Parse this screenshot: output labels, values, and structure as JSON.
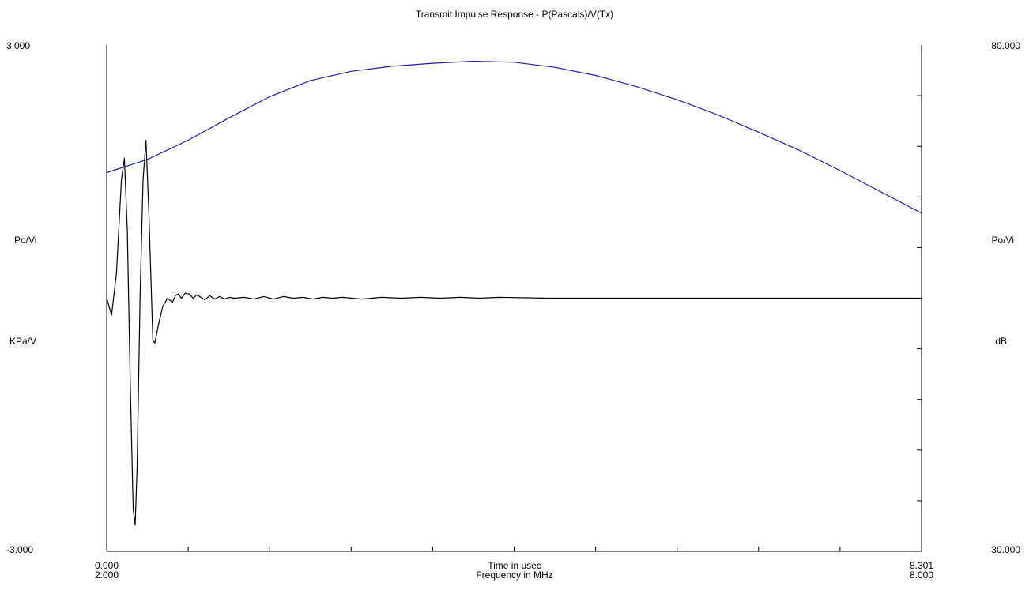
{
  "chart_data": {
    "type": "line",
    "title": "Transmit Impulse Response - P(Pascals)/V(Tx)",
    "x_axis": {
      "label_time": "Time in usec",
      "label_freq": "Frequency in MHz",
      "time_min_label": "0.000",
      "time_max_label": "8.301",
      "freq_min_label": "2.000",
      "freq_max_label": "8.000",
      "time_range": [
        0,
        8.301
      ],
      "freq_range": [
        2,
        8
      ]
    },
    "y_left": {
      "top_label": "3.000",
      "bottom_label": "-3.000",
      "label_line1": "Po/Vi",
      "label_line2": "KPa/V",
      "range": [
        -3,
        3
      ]
    },
    "y_right": {
      "top_label": "80.000",
      "bottom_label": "30.000",
      "label_line1": "Po/Vi",
      "label_line2": "dB",
      "range": [
        30,
        80
      ]
    },
    "grid": false,
    "series": [
      {
        "kind": "impulse",
        "axis": "left",
        "color": "#000000",
        "x_units": "usec",
        "points": [
          [
            0.0,
            0.0
          ],
          [
            0.05,
            -0.2
          ],
          [
            0.1,
            0.3
          ],
          [
            0.15,
            1.4
          ],
          [
            0.18,
            1.66
          ],
          [
            0.21,
            0.8
          ],
          [
            0.24,
            -1.0
          ],
          [
            0.27,
            -2.5
          ],
          [
            0.29,
            -2.69
          ],
          [
            0.31,
            -2.0
          ],
          [
            0.34,
            0.0
          ],
          [
            0.37,
            1.4
          ],
          [
            0.4,
            1.87
          ],
          [
            0.43,
            1.0
          ],
          [
            0.47,
            -0.5
          ],
          [
            0.49,
            -0.53
          ],
          [
            0.53,
            -0.3
          ],
          [
            0.57,
            -0.1
          ],
          [
            0.62,
            0.0
          ],
          [
            0.67,
            -0.05
          ],
          [
            0.7,
            0.03
          ],
          [
            0.73,
            0.05
          ],
          [
            0.76,
            0.0
          ],
          [
            0.8,
            0.06
          ],
          [
            0.84,
            0.05
          ],
          [
            0.88,
            0.0
          ],
          [
            0.92,
            0.04
          ],
          [
            0.96,
            0.01
          ],
          [
            1.0,
            -0.02
          ],
          [
            1.05,
            0.03
          ],
          [
            1.1,
            -0.01
          ],
          [
            1.15,
            0.02
          ],
          [
            1.2,
            -0.01
          ],
          [
            1.25,
            0.01
          ],
          [
            1.3,
            0.0
          ],
          [
            1.4,
            0.01
          ],
          [
            1.5,
            -0.01
          ],
          [
            1.6,
            0.02
          ],
          [
            1.7,
            -0.01
          ],
          [
            1.8,
            0.02
          ],
          [
            1.9,
            0.0
          ],
          [
            2.0,
            0.01
          ],
          [
            2.1,
            -0.01
          ],
          [
            2.2,
            0.01
          ],
          [
            2.3,
            0.0
          ],
          [
            2.4,
            0.01
          ],
          [
            2.6,
            -0.01
          ],
          [
            2.8,
            0.01
          ],
          [
            3.0,
            0.0
          ],
          [
            3.2,
            0.01
          ],
          [
            3.4,
            0.0
          ],
          [
            3.6,
            0.01
          ],
          [
            3.8,
            0.0
          ],
          [
            4.0,
            0.01
          ],
          [
            4.5,
            0.0
          ],
          [
            5.0,
            0.0
          ],
          [
            5.5,
            0.0
          ],
          [
            6.0,
            0.0
          ],
          [
            6.5,
            0.0
          ],
          [
            7.0,
            0.0
          ],
          [
            7.5,
            0.0
          ],
          [
            8.0,
            0.0
          ],
          [
            8.301,
            0.0
          ]
        ]
      },
      {
        "kind": "spectrum",
        "axis": "right",
        "color": "#1f1fa0",
        "x_units": "MHz",
        "points": [
          [
            2.0,
            67.4
          ],
          [
            2.3,
            68.7
          ],
          [
            2.6,
            70.6
          ],
          [
            2.9,
            72.8
          ],
          [
            3.2,
            74.9
          ],
          [
            3.5,
            76.5
          ],
          [
            3.8,
            77.4
          ],
          [
            4.1,
            77.9
          ],
          [
            4.4,
            78.2
          ],
          [
            4.7,
            78.4
          ],
          [
            5.0,
            78.3
          ],
          [
            5.3,
            77.8
          ],
          [
            5.6,
            77.0
          ],
          [
            5.9,
            75.9
          ],
          [
            6.2,
            74.6
          ],
          [
            6.5,
            73.1
          ],
          [
            6.8,
            71.4
          ],
          [
            7.1,
            69.6
          ],
          [
            7.4,
            67.6
          ],
          [
            7.7,
            65.5
          ],
          [
            8.0,
            63.4
          ]
        ]
      }
    ]
  }
}
